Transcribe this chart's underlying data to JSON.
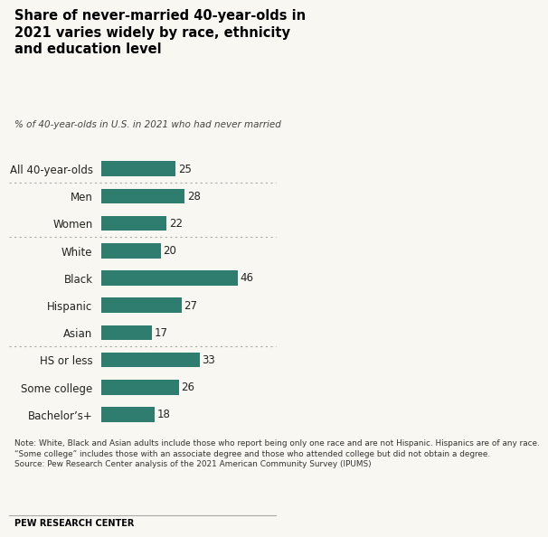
{
  "title": "Share of never-married 40-year-olds in\n2021 varies widely by race, ethnicity\nand education level",
  "subtitle": "% of 40-year-olds in U.S. in 2021 who had never married",
  "categories": [
    "All 40-year-olds",
    "Men",
    "Women",
    "White",
    "Black",
    "Hispanic",
    "Asian",
    "HS or less",
    "Some college",
    "Bachelor’s+"
  ],
  "values": [
    25,
    28,
    22,
    20,
    46,
    27,
    17,
    33,
    26,
    18
  ],
  "bar_color": "#2e7d6e",
  "label_color": "#222222",
  "background_color": "#f9f7f2",
  "title_color": "#000000",
  "note_text": "Note: White, Black and Asian adults include those who report being only one race and are not Hispanic. Hispanics are of any race.\n“Some college” includes those with an associate degree and those who attended college but did not obtain a degree.\nSource: Pew Research Center analysis of the 2021 American Community Survey (IPUMS)",
  "footer": "PEW RESEARCH CENTER",
  "separator_after_indices": [
    0,
    2,
    6
  ],
  "xlim": [
    0,
    52
  ]
}
